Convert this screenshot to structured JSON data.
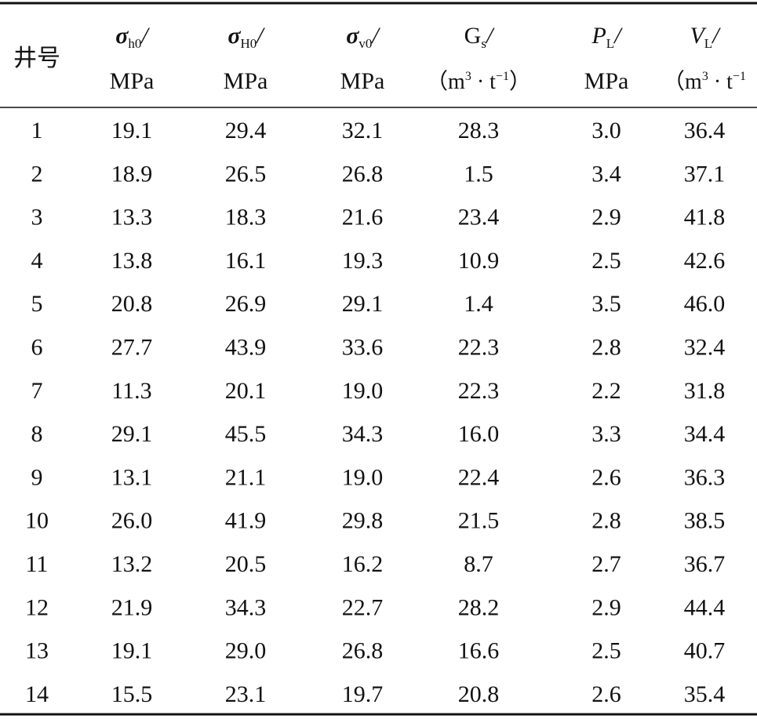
{
  "table": {
    "headers": [
      {
        "label": "井号"
      },
      {
        "symbol": "σ",
        "sub": "h0",
        "slash": "/",
        "unit": "MPa"
      },
      {
        "symbol": "σ",
        "sub": "H0",
        "slash": "/",
        "unit": "MPa"
      },
      {
        "symbol": "σ",
        "sub": "v0",
        "slash": "/",
        "unit": "MPa"
      },
      {
        "symbol": "G",
        "sub": "s",
        "slash": "/",
        "unit": {
          "open": "（m",
          "exp1": "3",
          "mid": " · t",
          "exp2": "−1",
          "close": "）"
        }
      },
      {
        "symbol": "P",
        "sub": "L",
        "slash": "/",
        "unit": "MPa"
      },
      {
        "symbol": "V",
        "sub": "L",
        "slash": "/",
        "unit": {
          "open": "（m",
          "exp1": "3",
          "mid": " · t",
          "exp2": "−1"
        }
      }
    ],
    "rows": [
      [
        "1",
        "19.1",
        "29.4",
        "32.1",
        "28.3",
        "3.0",
        "36.4"
      ],
      [
        "2",
        "18.9",
        "26.5",
        "26.8",
        "1.5",
        "3.4",
        "37.1"
      ],
      [
        "3",
        "13.3",
        "18.3",
        "21.6",
        "23.4",
        "2.9",
        "41.8"
      ],
      [
        "4",
        "13.8",
        "16.1",
        "19.3",
        "10.9",
        "2.5",
        "42.6"
      ],
      [
        "5",
        "20.8",
        "26.9",
        "29.1",
        "1.4",
        "3.5",
        "46.0"
      ],
      [
        "6",
        "27.7",
        "43.9",
        "33.6",
        "22.3",
        "2.8",
        "32.4"
      ],
      [
        "7",
        "11.3",
        "20.1",
        "19.0",
        "22.3",
        "2.2",
        "31.8"
      ],
      [
        "8",
        "29.1",
        "45.5",
        "34.3",
        "16.0",
        "3.3",
        "34.4"
      ],
      [
        "9",
        "13.1",
        "21.1",
        "19.0",
        "22.4",
        "2.6",
        "36.3"
      ],
      [
        "10",
        "26.0",
        "41.9",
        "29.8",
        "21.5",
        "2.8",
        "38.5"
      ],
      [
        "11",
        "13.2",
        "20.5",
        "16.2",
        "8.7",
        "2.7",
        "36.7"
      ],
      [
        "12",
        "21.9",
        "34.3",
        "22.7",
        "28.2",
        "2.9",
        "44.4"
      ],
      [
        "13",
        "19.1",
        "29.0",
        "26.8",
        "16.6",
        "2.5",
        "40.7"
      ],
      [
        "14",
        "15.5",
        "23.1",
        "19.7",
        "20.8",
        "2.6",
        "35.4"
      ]
    ]
  }
}
